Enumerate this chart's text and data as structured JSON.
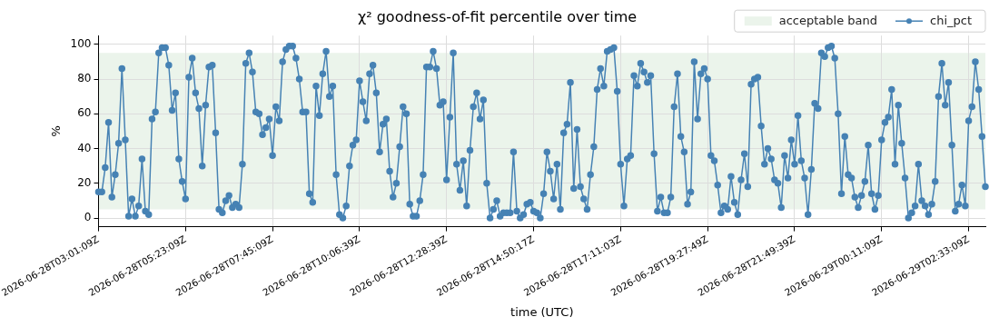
{
  "chart_data": {
    "type": "line",
    "title": "χ² goodness-of-fit percentile over time",
    "xlabel": "time (UTC)",
    "ylabel": "%",
    "categories": [
      "2026-06-28T03:01:09Z",
      null,
      null,
      null,
      null,
      null,
      null,
      null,
      null,
      null,
      null,
      null,
      null,
      null,
      null,
      null,
      null,
      null,
      null,
      null,
      null,
      null,
      null,
      null,
      null,
      null,
      "2026-06-28T05:23:09Z",
      null,
      null,
      null,
      null,
      null,
      null,
      null,
      null,
      null,
      null,
      null,
      null,
      null,
      null,
      null,
      null,
      null,
      null,
      null,
      null,
      null,
      null,
      null,
      null,
      null,
      "2026-06-28T07:45:09Z",
      null,
      null,
      null,
      null,
      null,
      null,
      null,
      null,
      null,
      null,
      null,
      null,
      null,
      null,
      null,
      null,
      null,
      null,
      null,
      null,
      null,
      null,
      null,
      null,
      null,
      "2026-06-28T10:06:39Z",
      null,
      null,
      null,
      null,
      null,
      null,
      null,
      null,
      null,
      null,
      null,
      null,
      null,
      null,
      null,
      null,
      null,
      null,
      null,
      null,
      null,
      null,
      null,
      null,
      null,
      "2026-06-28T12:28:39Z",
      null,
      null,
      null,
      null,
      null,
      null,
      null,
      null,
      null,
      null,
      null,
      null,
      null,
      null,
      null,
      null,
      null,
      null,
      null,
      null,
      null,
      null,
      null,
      null,
      null,
      "2026-06-28T14:50:17Z",
      null,
      null,
      null,
      null,
      null,
      null,
      null,
      null,
      null,
      null,
      null,
      null,
      null,
      null,
      null,
      null,
      null,
      null,
      null,
      null,
      null,
      null,
      null,
      null,
      null,
      "2026-06-28T17:11:03Z",
      null,
      null,
      null,
      null,
      null,
      null,
      null,
      null,
      null,
      null,
      null,
      null,
      null,
      null,
      null,
      null,
      null,
      null,
      null,
      null,
      null,
      null,
      null,
      null,
      null,
      "2026-06-28T19:27:49Z",
      null,
      null,
      null,
      null,
      null,
      null,
      null,
      null,
      null,
      null,
      null,
      null,
      null,
      null,
      null,
      null,
      null,
      null,
      null,
      null,
      null,
      null,
      null,
      null,
      null,
      "2026-06-28T21:49:39Z",
      null,
      null,
      null,
      null,
      null,
      null,
      null,
      null,
      null,
      null,
      null,
      null,
      null,
      null,
      null,
      null,
      null,
      null,
      null,
      null,
      null,
      null,
      null,
      null,
      null,
      "2026-06-29T00:11:09Z",
      null,
      null,
      null,
      null,
      null,
      null,
      null,
      null,
      null,
      null,
      null,
      null,
      null,
      null,
      null,
      null,
      null,
      null,
      null,
      null,
      null,
      null,
      null,
      null,
      null,
      "2026-06-29T02:33:09Z",
      null,
      null,
      null,
      null,
      null
    ],
    "series": [
      {
        "name": "chi_pct",
        "color": "#4682b4",
        "values": [
          15,
          15,
          29,
          55,
          12,
          25,
          43,
          86,
          45,
          1,
          11,
          1,
          7,
          34,
          4,
          2,
          57,
          61,
          95,
          98,
          98,
          88,
          62,
          72,
          34,
          21,
          11,
          81,
          92,
          72,
          63,
          30,
          65,
          87,
          88,
          49,
          5,
          3,
          10,
          13,
          6,
          8,
          6,
          31,
          89,
          95,
          84,
          61,
          60,
          48,
          52,
          57,
          36,
          64,
          56,
          90,
          97,
          99,
          99,
          92,
          80,
          61,
          61,
          14,
          9,
          76,
          59,
          83,
          96,
          70,
          76,
          25,
          2,
          0,
          7,
          30,
          42,
          45,
          79,
          67,
          56,
          83,
          88,
          72,
          38,
          54,
          57,
          27,
          12,
          20,
          41,
          64,
          60,
          8,
          1,
          1,
          10,
          25,
          87,
          87,
          96,
          86,
          65,
          67,
          22,
          58,
          95,
          31,
          16,
          33,
          7,
          39,
          64,
          72,
          57,
          68,
          20,
          0,
          5,
          10,
          1,
          3,
          3,
          3,
          38,
          4,
          0,
          2,
          8,
          9,
          4,
          3,
          0,
          14,
          38,
          27,
          11,
          31,
          5,
          49,
          54,
          78,
          17,
          51,
          18,
          11,
          5,
          25,
          41,
          74,
          86,
          76,
          96,
          97,
          98,
          73,
          31,
          7,
          34,
          36,
          82,
          76,
          89,
          84,
          78,
          82,
          37,
          4,
          12,
          3,
          3,
          12,
          64,
          83,
          47,
          38,
          8,
          15,
          90,
          57,
          83,
          86,
          80,
          36,
          33,
          19,
          3,
          7,
          5,
          24,
          9,
          2,
          22,
          37,
          18,
          77,
          80,
          81,
          53,
          31,
          40,
          34,
          22,
          20,
          6,
          36,
          23,
          45,
          31,
          59,
          33,
          23,
          2,
          28,
          66,
          63,
          95,
          93,
          98,
          99,
          92,
          60,
          14,
          47,
          25,
          23,
          12,
          6,
          13,
          21,
          42,
          14,
          5,
          13,
          45,
          55,
          58,
          74,
          31,
          65,
          43,
          23,
          0,
          3,
          7,
          31,
          10,
          7,
          2,
          8,
          21,
          70,
          89,
          65,
          78,
          42,
          4,
          8,
          19,
          7,
          56,
          64,
          90,
          74,
          47,
          18
        ]
      }
    ],
    "bands": [
      {
        "axis": "y",
        "from": 5,
        "to": 95,
        "label": "acceptable band",
        "color": "#ebf4eb"
      }
    ],
    "ylim": [
      -5,
      105
    ],
    "yticks": [
      0,
      20,
      40,
      60,
      80,
      100
    ],
    "grid": true,
    "legend": "top right",
    "marker": "circle",
    "line_style": "solid"
  }
}
